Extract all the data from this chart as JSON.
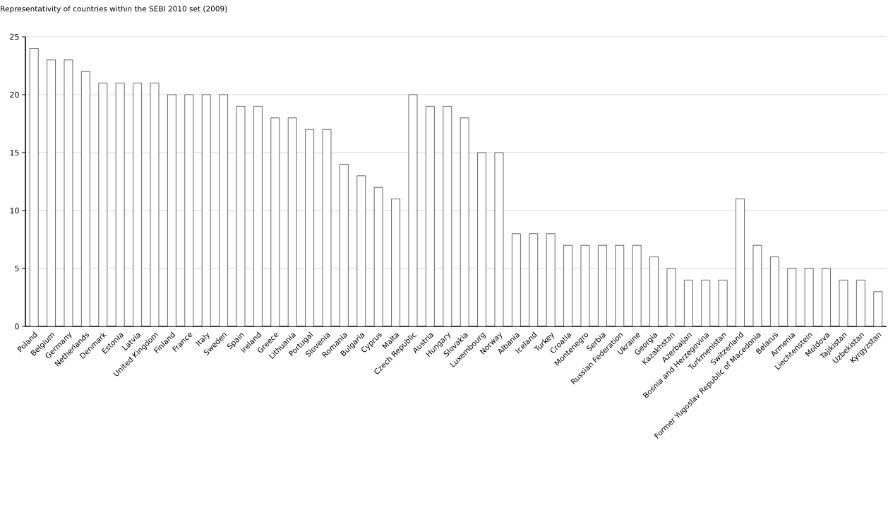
{
  "chart_data": {
    "type": "bar",
    "title": "Representativity of countries within the SEBI 2010 set (2009)",
    "categories": [
      "Poland",
      "Belgium",
      "Germany",
      "Netherlands",
      "Denmark",
      "Estonia",
      "Latvia",
      "United Kingdom",
      "Finland",
      "France",
      "Italy",
      "Sweden",
      "Spain",
      "Ireland",
      "Greece",
      "Lithuania",
      "Portugal",
      "Slovenia",
      "Romania",
      "Bulgaria",
      "Cyprus",
      "Malta",
      "Czech Republic",
      "Austria",
      "Hungary",
      "Slovakia",
      "Luxembourg",
      "Norway",
      "Albania",
      "Iceland",
      "Turkey",
      "Croatia",
      "Montenegro",
      "Serbia",
      "Russian Federation",
      "Ukraine",
      "Georgia",
      "Kazakhstan",
      "Azerbaijan",
      "Bosnia and Herzegovina",
      "Turkmenistan",
      "Switzerland",
      "Former Yugoslav Republic of Macedonia",
      "Belarus",
      "Armenia",
      "Liechtenstein",
      "Moldova",
      "Tajikistan",
      "Uzbekistan",
      "Kyrgyzstan"
    ],
    "values": [
      24,
      23,
      23,
      22,
      21,
      21,
      21,
      21,
      20,
      20,
      20,
      20,
      19,
      19,
      18,
      18,
      17,
      17,
      14,
      13,
      12,
      11,
      20,
      19,
      19,
      18,
      15,
      15,
      8,
      8,
      8,
      7,
      7,
      7,
      7,
      7,
      6,
      5,
      4,
      4,
      4,
      11,
      7,
      6,
      5,
      5,
      5,
      4,
      4,
      3
    ],
    "color": "#ffffff",
    "ylim": [
      0,
      25
    ],
    "yticks": [
      0,
      5,
      10,
      15,
      20,
      25
    ],
    "grid": "y"
  }
}
